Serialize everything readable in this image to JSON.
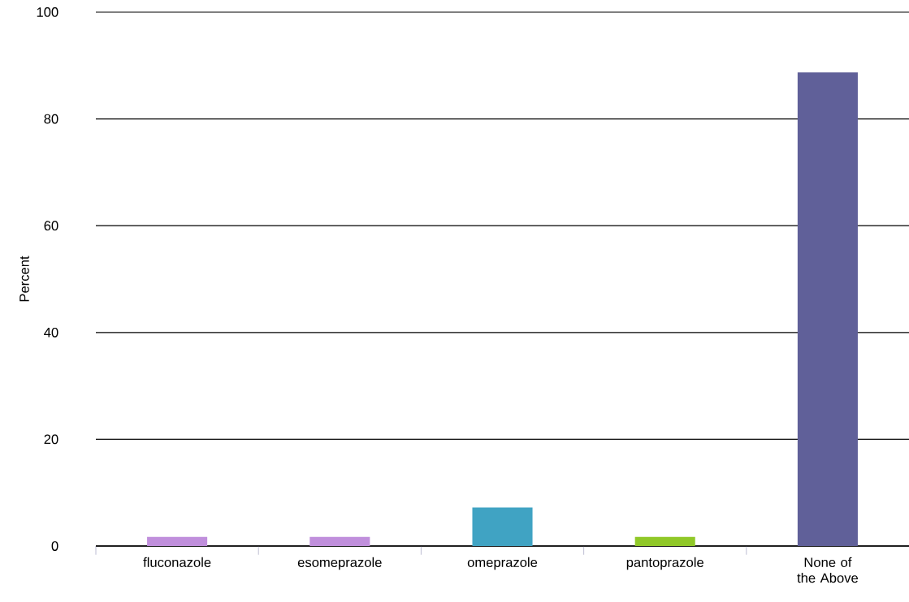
{
  "chart_data": {
    "type": "bar",
    "ylabel": "Percent",
    "categories": [
      "fluconazole",
      "esomeprazole",
      "omeprazole",
      "pantoprazole",
      "None of the Above"
    ],
    "values": [
      1.7,
      1.7,
      7.2,
      1.7,
      88.7
    ],
    "colors": [
      "#c08fdc",
      "#c08fdc",
      "#40a3c3",
      "#90c828",
      "#606099"
    ],
    "ylim": [
      0,
      100
    ],
    "yticks": [
      0,
      20,
      40,
      60,
      80,
      100
    ],
    "grid": "y"
  }
}
